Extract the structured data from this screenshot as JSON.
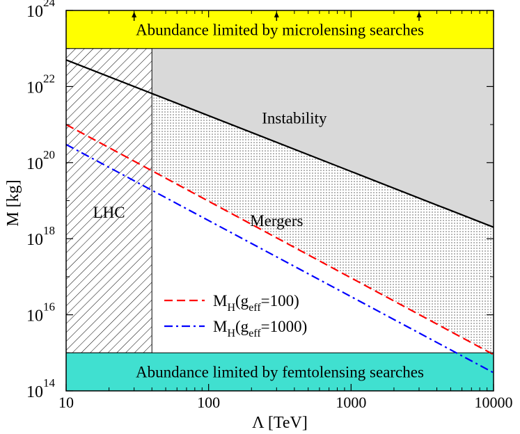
{
  "chart_data": {
    "type": "line",
    "x_scale": "log",
    "y_scale": "log",
    "xlim": [
      10,
      10000
    ],
    "ylim": [
      100000000000000.0,
      1e+24
    ],
    "xlabel": "Λ [TeV]",
    "ylabel": "M [kg]",
    "x_ticks": [
      {
        "value": 10,
        "label": "10"
      },
      {
        "value": 100,
        "label": "100"
      },
      {
        "value": 1000,
        "label": "1000"
      },
      {
        "value": 10000,
        "label": "10000"
      }
    ],
    "y_ticks": [
      {
        "value": 100000000000000.0,
        "base": "10",
        "exp": "14"
      },
      {
        "value": 1e+16,
        "base": "10",
        "exp": "16"
      },
      {
        "value": 1e+18,
        "base": "10",
        "exp": "18"
      },
      {
        "value": 1e+20,
        "base": "10",
        "exp": "20"
      },
      {
        "value": 1e+22,
        "base": "10",
        "exp": "22"
      },
      {
        "value": 1e+24,
        "base": "10",
        "exp": "24"
      }
    ],
    "regions": {
      "microlensing": {
        "label": "Abundance limited by microlensing searches",
        "y_range": [
          1e+23,
          1e+24
        ],
        "color": "#ffff00"
      },
      "femtolensing": {
        "label": "Abundance limited by femtolensing searches",
        "y_range": [
          100000000000000.0,
          1000000000000000.0
        ],
        "color": "#40e0d0"
      },
      "lhc": {
        "label": "LHC",
        "x_range": [
          10,
          40
        ]
      },
      "instability": {
        "label": "Instability",
        "color": "#d9d9d9"
      },
      "mergers": {
        "label": "Mergers"
      }
    },
    "arrow_x": [
      30,
      300,
      3000
    ],
    "series": [
      {
        "key": "instability",
        "style": "solid",
        "color": "#000000",
        "x": [
          10,
          10000
        ],
        "y": [
          5e+22,
          2e+18
        ]
      },
      {
        "key": "mh100",
        "name_main": "M",
        "name_sub1": "H",
        "name_mid": "(g",
        "name_sub2": "eff",
        "name_end": "=100)",
        "style": "dashed",
        "color": "#ff0000",
        "x": [
          10,
          10000
        ],
        "y": [
          1e+21,
          900000000000000.0
        ]
      },
      {
        "key": "mh1000",
        "name_main": "M",
        "name_sub1": "H",
        "name_mid": "(g",
        "name_sub2": "eff",
        "name_end": "=1000)",
        "style": "dashdot",
        "color": "#0000ff",
        "x": [
          10,
          10000
        ],
        "y": [
          3e+20,
          300000000000000.0
        ]
      }
    ]
  }
}
